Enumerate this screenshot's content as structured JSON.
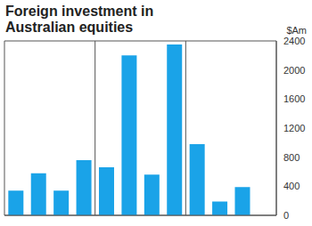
{
  "chart_data": {
    "type": "bar",
    "title": "Foreign investment in Australian equities",
    "ylabel": "$Am",
    "categories": [
      null,
      null,
      null,
      null,
      null,
      null,
      null,
      null,
      null,
      null,
      null,
      null
    ],
    "values": [
      340,
      580,
      340,
      760,
      660,
      2200,
      560,
      2350,
      980,
      190,
      390,
      null
    ],
    "color": "#1aa3e8",
    "ylim": [
      0,
      2400
    ],
    "yticks": [
      0,
      400,
      800,
      1200,
      1600,
      2000,
      2400
    ],
    "grid": true
  }
}
